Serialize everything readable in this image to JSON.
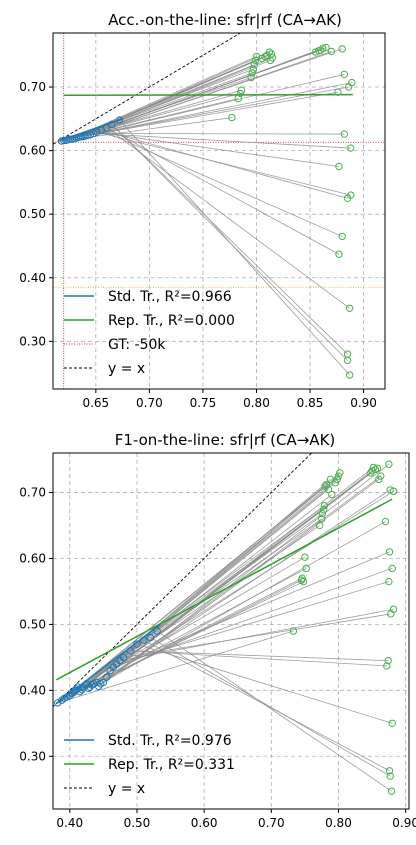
{
  "colors": {
    "std": "#1f77b4",
    "rep": "#2ca02c",
    "rep_marker": "#4caf50",
    "pair_line": "#8c8c8c",
    "gt": "#d62728",
    "gt_h": "#f5a25a",
    "yx": "#000000"
  },
  "chart_data": [
    {
      "type": "scatter",
      "title": "Acc.-on-the-line: sfr|rf  (CA→AK)",
      "xlim": [
        0.61,
        0.92
      ],
      "ylim": [
        0.225,
        0.785
      ],
      "xticks": [
        0.65,
        0.7,
        0.75,
        0.8,
        0.85,
        0.9
      ],
      "xtick_labels": [
        "0.65",
        "0.70",
        "0.75",
        "0.80",
        "0.85",
        "0.90"
      ],
      "yticks": [
        0.3,
        0.4,
        0.5,
        0.6,
        0.7
      ],
      "ytick_labels": [
        "0.30",
        "0.40",
        "0.50",
        "0.60",
        "0.70"
      ],
      "grid": true,
      "std_fit": {
        "x": [
          0.615,
          0.675
        ],
        "y": [
          0.615,
          0.65
        ]
      },
      "rep_fit": {
        "x": [
          0.62,
          0.89
        ],
        "y": [
          0.687,
          0.688
        ]
      },
      "gt": {
        "x": 0.62,
        "y": 0.613,
        "y2": 0.385
      },
      "std_points": [
        [
          0.618,
          0.615
        ],
        [
          0.62,
          0.616
        ],
        [
          0.622,
          0.616
        ],
        [
          0.624,
          0.617
        ],
        [
          0.626,
          0.618
        ],
        [
          0.628,
          0.618
        ],
        [
          0.63,
          0.619
        ],
        [
          0.632,
          0.62
        ],
        [
          0.634,
          0.621
        ],
        [
          0.636,
          0.622
        ],
        [
          0.638,
          0.622
        ],
        [
          0.64,
          0.623
        ],
        [
          0.642,
          0.624
        ],
        [
          0.645,
          0.625
        ],
        [
          0.648,
          0.627
        ],
        [
          0.651,
          0.629
        ],
        [
          0.655,
          0.632
        ],
        [
          0.66,
          0.636
        ],
        [
          0.665,
          0.641
        ],
        [
          0.672,
          0.648
        ]
      ],
      "rep_points": [
        [
          0.777,
          0.652
        ],
        [
          0.783,
          0.682
        ],
        [
          0.785,
          0.69
        ],
        [
          0.786,
          0.695
        ],
        [
          0.795,
          0.715
        ],
        [
          0.796,
          0.722
        ],
        [
          0.797,
          0.728
        ],
        [
          0.798,
          0.735
        ],
        [
          0.799,
          0.742
        ],
        [
          0.8,
          0.748
        ],
        [
          0.805,
          0.745
        ],
        [
          0.808,
          0.748
        ],
        [
          0.81,
          0.75
        ],
        [
          0.812,
          0.755
        ],
        [
          0.813,
          0.742
        ],
        [
          0.814,
          0.752
        ],
        [
          0.815,
          0.746
        ],
        [
          0.855,
          0.755
        ],
        [
          0.858,
          0.757
        ],
        [
          0.86,
          0.758
        ],
        [
          0.862,
          0.761
        ],
        [
          0.865,
          0.762
        ],
        [
          0.87,
          0.756
        ],
        [
          0.876,
          0.692
        ],
        [
          0.88,
          0.76
        ],
        [
          0.882,
          0.72
        ],
        [
          0.886,
          0.7
        ],
        [
          0.889,
          0.707
        ],
        [
          0.882,
          0.626
        ],
        [
          0.888,
          0.604
        ],
        [
          0.877,
          0.575
        ],
        [
          0.888,
          0.53
        ],
        [
          0.885,
          0.525
        ],
        [
          0.88,
          0.465
        ],
        [
          0.877,
          0.437
        ],
        [
          0.887,
          0.352
        ],
        [
          0.885,
          0.28
        ],
        [
          0.885,
          0.27
        ],
        [
          0.887,
          0.247
        ]
      ],
      "legend": [
        {
          "label": "Std. Tr., R²=0.966",
          "type": "std"
        },
        {
          "label": "Rep. Tr., R²=0.000",
          "type": "rep"
        },
        {
          "label": "GT: -50k",
          "type": "gt"
        },
        {
          "label": "y = x",
          "type": "yx"
        }
      ]
    },
    {
      "type": "scatter",
      "title": "F1-on-the-line: sfr|rf  (CA→AK)",
      "xlim": [
        0.375,
        0.905
      ],
      "ylim": [
        0.22,
        0.76
      ],
      "xticks": [
        0.4,
        0.5,
        0.6,
        0.7,
        0.8,
        0.9
      ],
      "xtick_labels": [
        "0.40",
        "0.50",
        "0.60",
        "0.70",
        "0.80",
        "0.90"
      ],
      "yticks": [
        0.3,
        0.4,
        0.5,
        0.6,
        0.7
      ],
      "ytick_labels": [
        "0.30",
        "0.40",
        "0.50",
        "0.60",
        "0.70"
      ],
      "grid": true,
      "std_fit": {
        "x": [
          0.38,
          0.535
        ],
        "y": [
          0.38,
          0.5
        ]
      },
      "rep_fit": {
        "x": [
          0.38,
          0.88
        ],
        "y": [
          0.416,
          0.69
        ]
      },
      "std_points": [
        [
          0.382,
          0.381
        ],
        [
          0.388,
          0.385
        ],
        [
          0.392,
          0.388
        ],
        [
          0.396,
          0.39
        ],
        [
          0.4,
          0.392
        ],
        [
          0.403,
          0.395
        ],
        [
          0.406,
          0.397
        ],
        [
          0.408,
          0.4
        ],
        [
          0.41,
          0.402
        ],
        [
          0.412,
          0.405
        ],
        [
          0.415,
          0.398
        ],
        [
          0.418,
          0.401
        ],
        [
          0.42,
          0.404
        ],
        [
          0.423,
          0.408
        ],
        [
          0.425,
          0.41
        ],
        [
          0.428,
          0.403
        ],
        [
          0.43,
          0.405
        ],
        [
          0.433,
          0.408
        ],
        [
          0.436,
          0.41
        ],
        [
          0.44,
          0.412
        ],
        [
          0.443,
          0.406
        ],
        [
          0.446,
          0.41
        ],
        [
          0.45,
          0.412
        ],
        [
          0.455,
          0.42
        ],
        [
          0.46,
          0.43
        ],
        [
          0.465,
          0.435
        ],
        [
          0.47,
          0.44
        ],
        [
          0.475,
          0.445
        ],
        [
          0.48,
          0.45
        ],
        [
          0.49,
          0.46
        ],
        [
          0.5,
          0.47
        ],
        [
          0.51,
          0.476
        ],
        [
          0.52,
          0.48
        ],
        [
          0.53,
          0.49
        ]
      ],
      "rep_points": [
        [
          0.733,
          0.49
        ],
        [
          0.745,
          0.567
        ],
        [
          0.746,
          0.57
        ],
        [
          0.748,
          0.565
        ],
        [
          0.75,
          0.602
        ],
        [
          0.752,
          0.585
        ],
        [
          0.772,
          0.65
        ],
        [
          0.775,
          0.66
        ],
        [
          0.776,
          0.668
        ],
        [
          0.778,
          0.674
        ],
        [
          0.779,
          0.68
        ],
        [
          0.78,
          0.71
        ],
        [
          0.782,
          0.712
        ],
        [
          0.785,
          0.705
        ],
        [
          0.788,
          0.72
        ],
        [
          0.79,
          0.697
        ],
        [
          0.795,
          0.715
        ],
        [
          0.798,
          0.72
        ],
        [
          0.8,
          0.725
        ],
        [
          0.802,
          0.73
        ],
        [
          0.848,
          0.73
        ],
        [
          0.85,
          0.733
        ],
        [
          0.852,
          0.738
        ],
        [
          0.855,
          0.735
        ],
        [
          0.858,
          0.737
        ],
        [
          0.86,
          0.72
        ],
        [
          0.863,
          0.725
        ],
        [
          0.87,
          0.656
        ],
        [
          0.875,
          0.743
        ],
        [
          0.877,
          0.704
        ],
        [
          0.882,
          0.702
        ],
        [
          0.876,
          0.61
        ],
        [
          0.88,
          0.585
        ],
        [
          0.875,
          0.565
        ],
        [
          0.882,
          0.523
        ],
        [
          0.878,
          0.516
        ],
        [
          0.874,
          0.445
        ],
        [
          0.872,
          0.437
        ],
        [
          0.88,
          0.35
        ],
        [
          0.876,
          0.278
        ],
        [
          0.877,
          0.27
        ],
        [
          0.879,
          0.247
        ]
      ],
      "legend": [
        {
          "label": "Std. Tr., R²=0.976",
          "type": "std"
        },
        {
          "label": "Rep. Tr., R²=0.331",
          "type": "rep"
        },
        {
          "label": "y = x",
          "type": "yx"
        }
      ]
    }
  ]
}
